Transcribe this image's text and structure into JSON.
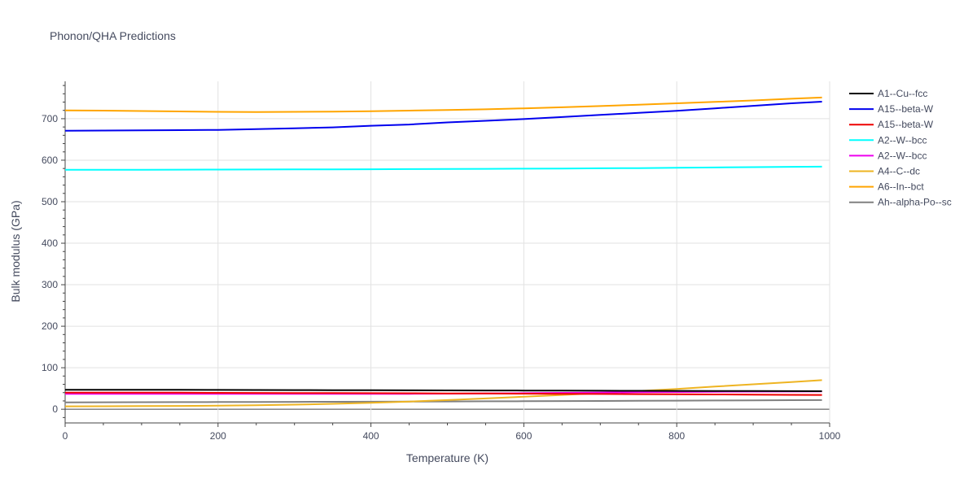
{
  "chart_data": {
    "type": "line",
    "title": "Phonon/QHA Predictions",
    "xlabel": "Temperature (K)",
    "ylabel": "Bulk modulus (GPa)",
    "xlim": [
      0,
      1000
    ],
    "ylim": [
      -33,
      790
    ],
    "x_ticks": [
      0,
      200,
      400,
      600,
      800,
      1000
    ],
    "y_ticks": [
      0,
      100,
      200,
      300,
      400,
      500,
      600,
      700
    ],
    "grid": true,
    "legend_position": "right",
    "x": [
      0,
      50,
      100,
      150,
      200,
      250,
      300,
      350,
      400,
      450,
      500,
      550,
      600,
      650,
      700,
      750,
      800,
      850,
      900,
      950,
      990
    ],
    "series": [
      {
        "name": "A1--Cu--fcc",
        "color": "#000000",
        "values": [
          47,
          47,
          47,
          46.8,
          46.6,
          46.4,
          46.2,
          46,
          45.8,
          45.6,
          45.4,
          45.2,
          45,
          44.8,
          44.6,
          44.4,
          44.2,
          44,
          43.8,
          43.6,
          43.5
        ]
      },
      {
        "name": "A15--beta-W",
        "color": "#0000ee",
        "values": [
          671,
          671.5,
          672,
          672.5,
          673,
          675,
          677,
          679,
          683,
          686,
          691,
          695,
          699,
          704,
          709,
          714,
          719,
          725,
          731,
          737,
          741
        ]
      },
      {
        "name": "A15--beta-W",
        "color": "#ee0000",
        "values": [
          40,
          40,
          40,
          39.8,
          39.6,
          39.4,
          39.2,
          39,
          38.8,
          38.5,
          38.2,
          37.9,
          37.5,
          37.1,
          36.7,
          36.3,
          35.9,
          35.5,
          35.1,
          34.7,
          34.4
        ]
      },
      {
        "name": "A2--W--bcc",
        "color": "#00ffff",
        "values": [
          577,
          577,
          577,
          577.2,
          577.4,
          577.6,
          577.8,
          578,
          578.2,
          578.5,
          578.8,
          579.1,
          579.5,
          580,
          580.5,
          581,
          581.7,
          582.4,
          583.2,
          584,
          584.5
        ]
      },
      {
        "name": "A2--W--bcc",
        "color": "#ee00ee",
        "values": [
          37,
          37,
          37,
          37,
          37,
          37,
          37,
          37,
          37,
          37.2,
          37.6,
          38.2,
          38.8,
          39.5,
          40.2,
          40.9,
          41.5,
          42,
          42.4,
          42.7,
          42.8
        ]
      },
      {
        "name": "A4--C--dc",
        "color": "#eeb422",
        "values": [
          7,
          7.2,
          7.5,
          8,
          8.5,
          9.5,
          11,
          13,
          15.5,
          18.5,
          22,
          26,
          30,
          34.5,
          39,
          44,
          49,
          54.5,
          60,
          65.5,
          70
        ]
      },
      {
        "name": "A6--In--bct",
        "color": "#ffa500",
        "values": [
          720,
          719.5,
          718.5,
          717.5,
          716.5,
          716,
          716.5,
          717,
          718,
          719.5,
          721,
          722.5,
          725,
          727.5,
          730.5,
          733.5,
          737,
          740.5,
          744,
          748,
          751
        ]
      },
      {
        "name": "Ah--alpha-Po--sc",
        "color": "#808080",
        "values": [
          16.5,
          16.7,
          17,
          17.2,
          17.4,
          17.6,
          17.8,
          18,
          18.2,
          18.5,
          18.8,
          19.1,
          19.4,
          19.7,
          20,
          20.3,
          20.6,
          21,
          21.4,
          21.8,
          22
        ]
      }
    ]
  }
}
